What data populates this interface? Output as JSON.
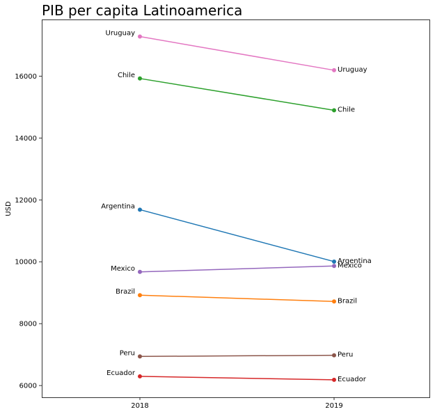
{
  "chart_data": {
    "type": "line",
    "title": "PIB per capita Latinoamerica",
    "xlabel": "",
    "ylabel": "USD",
    "x": [
      "2018",
      "2019"
    ],
    "yticks": [
      6000,
      8000,
      10000,
      12000,
      14000,
      16000
    ],
    "ylim": [
      5620,
      17830
    ],
    "grid": false,
    "series": [
      {
        "name": "Uruguay",
        "color": "#e377c2",
        "values": [
          17278,
          16190
        ]
      },
      {
        "name": "Chile",
        "color": "#2ca02c",
        "values": [
          15923,
          14896
        ]
      },
      {
        "name": "Argentina",
        "color": "#1f77b4",
        "values": [
          11684,
          10006
        ]
      },
      {
        "name": "Mexico",
        "color": "#9467bd",
        "values": [
          9673,
          9863
        ]
      },
      {
        "name": "Brazil",
        "color": "#ff7f0e",
        "values": [
          8921,
          8717
        ]
      },
      {
        "name": "Peru",
        "color": "#8c564b",
        "values": [
          6941,
          6978
        ]
      },
      {
        "name": "Ecuador",
        "color": "#d62728",
        "values": [
          6296,
          6184
        ]
      }
    ]
  }
}
